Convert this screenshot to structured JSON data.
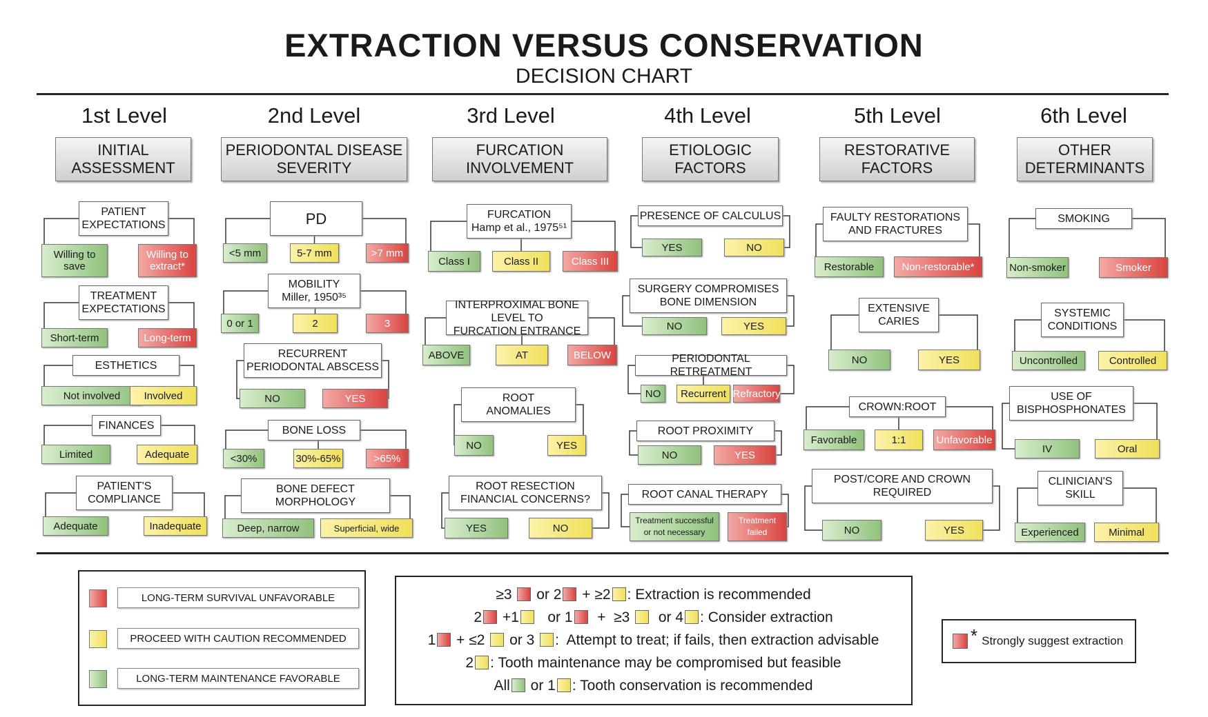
{
  "title": "EXTRACTION VERSUS CONSERVATION",
  "subtitle": "DECISION CHART",
  "levels": [
    {
      "level": "1st Level",
      "category": "INITIAL\nASSESSMENT"
    },
    {
      "level": "2nd Level",
      "category": "PERIODONTAL DISEASE\nSEVERITY"
    },
    {
      "level": "3rd Level",
      "category": "FURCATION\nINVOLVEMENT"
    },
    {
      "level": "4th Level",
      "category": "ETIOLOGIC\nFACTORS"
    },
    {
      "level": "5th Level",
      "category": "RESTORATIVE\nFACTORS"
    },
    {
      "level": "6th Level",
      "category": "OTHER\nDETERMINANTS"
    }
  ],
  "nodes": [
    {
      "q": "PATIENT\nEXPECTATIONS",
      "opts": [
        {
          "t": "Willing to\nsave",
          "c": "g"
        },
        {
          "t": "Willing to\nextract*",
          "c": "r"
        }
      ]
    },
    {
      "q": "TREATMENT\nEXPECTATIONS",
      "opts": [
        {
          "t": "Short-term",
          "c": "g"
        },
        {
          "t": "Long-term",
          "c": "r"
        }
      ]
    },
    {
      "q": "ESTHETICS",
      "opts": [
        {
          "t": "Not involved",
          "c": "g"
        },
        {
          "t": "Involved",
          "c": "y"
        }
      ]
    },
    {
      "q": "FINANCES",
      "opts": [
        {
          "t": "Limited",
          "c": "g"
        },
        {
          "t": "Adequate",
          "c": "y"
        }
      ]
    },
    {
      "q": "PATIENT'S\nCOMPLIANCE",
      "opts": [
        {
          "t": "Adequate",
          "c": "g"
        },
        {
          "t": "Inadequate",
          "c": "y"
        }
      ]
    },
    {
      "q": "PD",
      "opts": [
        {
          "t": "<5 mm",
          "c": "g"
        },
        {
          "t": "5-7 mm",
          "c": "y"
        },
        {
          "t": ">7 mm",
          "c": "r"
        }
      ]
    },
    {
      "q": "MOBILITY\nMiller, 1950³⁵",
      "opts": [
        {
          "t": "0 or 1",
          "c": "g"
        },
        {
          "t": "2",
          "c": "y"
        },
        {
          "t": "3",
          "c": "r"
        }
      ]
    },
    {
      "q": "RECURRENT\nPERIODONTAL ABSCESS",
      "opts": [
        {
          "t": "NO",
          "c": "g"
        },
        {
          "t": "YES",
          "c": "r"
        }
      ]
    },
    {
      "q": "BONE LOSS",
      "opts": [
        {
          "t": "<30%",
          "c": "g"
        },
        {
          "t": "30%-65%",
          "c": "y"
        },
        {
          "t": ">65%",
          "c": "r"
        }
      ]
    },
    {
      "q": "BONE DEFECT\nMORPHOLOGY",
      "opts": [
        {
          "t": "Deep, narrow",
          "c": "g"
        },
        {
          "t": "Superficial, wide",
          "c": "y"
        }
      ]
    },
    {
      "q": "FURCATION\nHamp et al., 1975⁵¹",
      "opts": [
        {
          "t": "Class I",
          "c": "g"
        },
        {
          "t": "Class II",
          "c": "y"
        },
        {
          "t": "Class III",
          "c": "r"
        }
      ]
    },
    {
      "q": "INTERPROXIMAL BONE LEVEL TO\nFURCATION ENTRANCE",
      "opts": [
        {
          "t": "ABOVE",
          "c": "g"
        },
        {
          "t": "AT",
          "c": "y"
        },
        {
          "t": "BELOW",
          "c": "r"
        }
      ]
    },
    {
      "q": "ROOT\nANOMALIES",
      "opts": [
        {
          "t": "NO",
          "c": "g"
        },
        {
          "t": "YES",
          "c": "y"
        }
      ]
    },
    {
      "q": "ROOT RESECTION\nFINANCIAL CONCERNS?",
      "opts": [
        {
          "t": "YES",
          "c": "g"
        },
        {
          "t": "NO",
          "c": "y"
        }
      ]
    },
    {
      "q": "PRESENCE OF CALCULUS",
      "opts": [
        {
          "t": "YES",
          "c": "g"
        },
        {
          "t": "NO",
          "c": "y"
        }
      ]
    },
    {
      "q": "SURGERY COMPROMISES\nBONE DIMENSION",
      "opts": [
        {
          "t": "NO",
          "c": "g"
        },
        {
          "t": "YES",
          "c": "y"
        }
      ]
    },
    {
      "q": "PERIODONTAL RETREATMENT",
      "opts": [
        {
          "t": "NO",
          "c": "g"
        },
        {
          "t": "Recurrent",
          "c": "y"
        },
        {
          "t": "Refractory",
          "c": "r"
        }
      ]
    },
    {
      "q": "ROOT PROXIMITY",
      "opts": [
        {
          "t": "NO",
          "c": "g"
        },
        {
          "t": "YES",
          "c": "r"
        }
      ]
    },
    {
      "q": "ROOT CANAL THERAPY",
      "opts": [
        {
          "t": "Treatment successful\nor not necessary",
          "c": "g"
        },
        {
          "t": "Treatment\nfailed",
          "c": "r"
        }
      ]
    },
    {
      "q": "FAULTY RESTORATIONS\nAND FRACTURES",
      "opts": [
        {
          "t": "Restorable",
          "c": "g"
        },
        {
          "t": "Non-restorable*",
          "c": "r"
        }
      ]
    },
    {
      "q": "EXTENSIVE\nCARIES",
      "opts": [
        {
          "t": "NO",
          "c": "g"
        },
        {
          "t": "YES",
          "c": "y"
        }
      ]
    },
    {
      "q": "CROWN:ROOT",
      "opts": [
        {
          "t": "Favorable",
          "c": "g"
        },
        {
          "t": "1:1",
          "c": "y"
        },
        {
          "t": "Unfavorable",
          "c": "r"
        }
      ]
    },
    {
      "q": "POST/CORE AND CROWN\nREQUIRED",
      "opts": [
        {
          "t": "NO",
          "c": "g"
        },
        {
          "t": "YES",
          "c": "y"
        }
      ]
    },
    {
      "q": "SMOKING",
      "opts": [
        {
          "t": "Non-smoker",
          "c": "g"
        },
        {
          "t": "Smoker",
          "c": "r"
        }
      ]
    },
    {
      "q": "SYSTEMIC\nCONDITIONS",
      "opts": [
        {
          "t": "Uncontrolled",
          "c": "g"
        },
        {
          "t": "Controlled",
          "c": "y"
        }
      ]
    },
    {
      "q": "USE OF\nBISPHOSPHONATES",
      "opts": [
        {
          "t": "IV",
          "c": "g"
        },
        {
          "t": "Oral",
          "c": "y"
        }
      ]
    },
    {
      "q": "CLINICIAN'S\nSKILL",
      "opts": [
        {
          "t": "Experienced",
          "c": "g"
        },
        {
          "t": "Minimal",
          "c": "y"
        }
      ]
    }
  ],
  "legend": [
    {
      "label": "LONG-TERM SURVIVAL UNFAVORABLE",
      "color": "#d94440"
    },
    {
      "label": "PROCEED WITH CAUTION RECOMMENDED",
      "color": "#f0e05b"
    },
    {
      "label": "LONG-TERM MAINTENANCE FAVORABLE",
      "color": "#91c27d"
    }
  ],
  "rules": [
    {
      "parts": [
        [
          "t",
          "≥3 "
        ],
        [
          "s",
          "r"
        ],
        [
          "t",
          " or 2"
        ],
        [
          "s",
          "r"
        ],
        [
          "t",
          " + ≥2"
        ],
        [
          "s",
          "y"
        ],
        [
          "t",
          ": Extraction is recommended"
        ]
      ]
    },
    {
      "parts": [
        [
          "t",
          "2"
        ],
        [
          "s",
          "r"
        ],
        [
          "t",
          " +1"
        ],
        [
          "s",
          "y"
        ],
        [
          "t",
          "   or 1"
        ],
        [
          "s",
          "r"
        ],
        [
          "t",
          "  +  ≥3 "
        ],
        [
          "s",
          "y"
        ],
        [
          "t",
          "  or 4"
        ],
        [
          "s",
          "y"
        ],
        [
          "t",
          ": Consider extraction"
        ]
      ]
    },
    {
      "parts": [
        [
          "t",
          "1"
        ],
        [
          "s",
          "r"
        ],
        [
          "t",
          " + ≤2 "
        ],
        [
          "s",
          "y"
        ],
        [
          "t",
          " or 3 "
        ],
        [
          "s",
          "y"
        ],
        [
          "t",
          ":  Attempt to treat; if fails, then extraction advisable"
        ]
      ]
    },
    {
      "parts": [
        [
          "t",
          "2"
        ],
        [
          "s",
          "y"
        ],
        [
          "t",
          ": Tooth maintenance may be compromised but feasible"
        ]
      ]
    },
    {
      "parts": [
        [
          "t",
          "All"
        ],
        [
          "s",
          "g"
        ],
        [
          "t",
          " or 1"
        ],
        [
          "s",
          "y"
        ],
        [
          "t",
          ": Tooth conservation is recommended"
        ]
      ]
    }
  ],
  "star_note": {
    "star": "*",
    "label": "Strongly suggest extraction"
  }
}
